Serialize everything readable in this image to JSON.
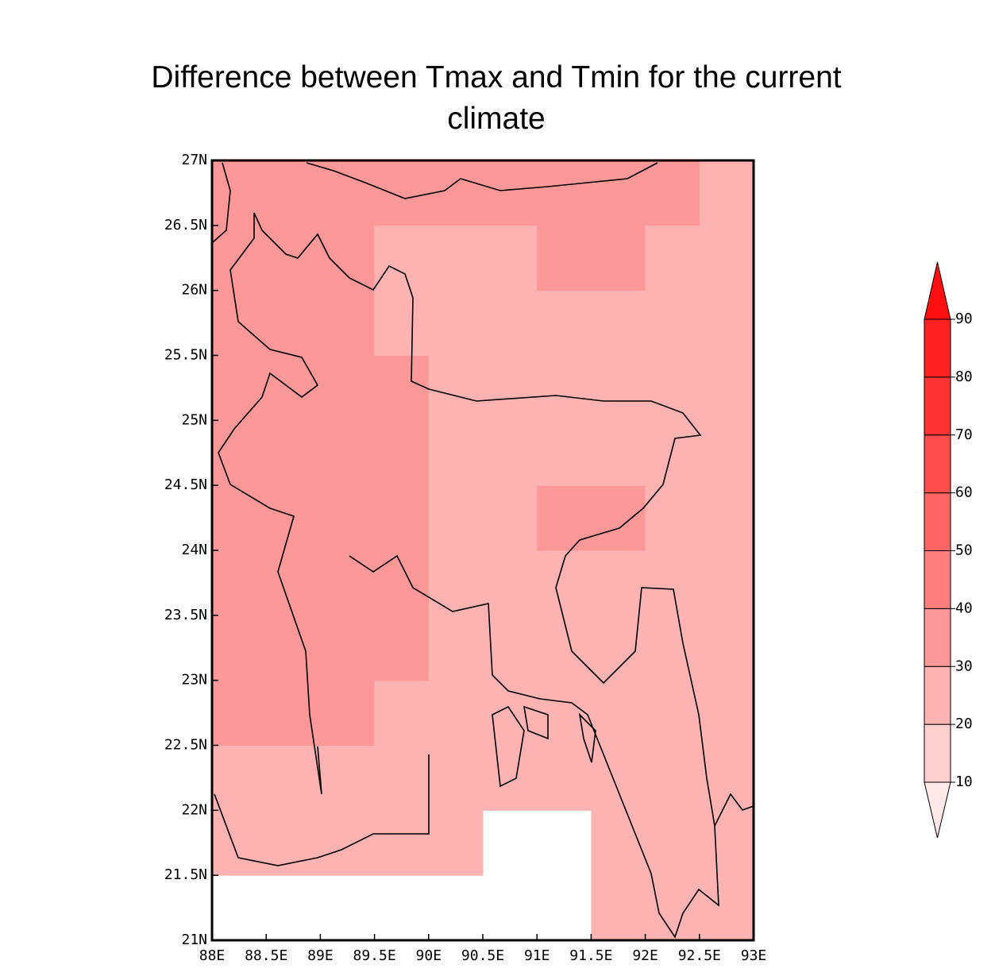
{
  "chart_data": {
    "type": "grid-map",
    "title": "Difference between Tmax and Tmin for the current climate",
    "xticks": [
      {
        "value": 88,
        "label": "88E"
      },
      {
        "value": 88.5,
        "label": "88.5E"
      },
      {
        "value": 89,
        "label": "89E"
      },
      {
        "value": 89.5,
        "label": "89.5E"
      },
      {
        "value": 90,
        "label": "90E"
      },
      {
        "value": 90.5,
        "label": "90.5E"
      },
      {
        "value": 91,
        "label": "91E"
      },
      {
        "value": 91.5,
        "label": "91.5E"
      },
      {
        "value": 92,
        "label": "92E"
      },
      {
        "value": 92.5,
        "label": "92.5E"
      },
      {
        "value": 93,
        "label": "93E"
      }
    ],
    "yticks": [
      {
        "value": 21,
        "label": "21N"
      },
      {
        "value": 21.5,
        "label": "21.5N"
      },
      {
        "value": 22,
        "label": "22N"
      },
      {
        "value": 22.5,
        "label": "22.5N"
      },
      {
        "value": 23,
        "label": "23N"
      },
      {
        "value": 23.5,
        "label": "23.5N"
      },
      {
        "value": 24,
        "label": "24N"
      },
      {
        "value": 24.5,
        "label": "24.5N"
      },
      {
        "value": 25,
        "label": "25N"
      },
      {
        "value": 25.5,
        "label": "25.5N"
      },
      {
        "value": 26,
        "label": "26N"
      },
      {
        "value": 26.5,
        "label": "26.5N"
      },
      {
        "value": 27,
        "label": "27N"
      }
    ],
    "xlim": [
      88,
      93
    ],
    "ylim": [
      21,
      27
    ],
    "cells": [
      [
        null,
        null,
        null,
        null,
        null,
        null,
        null,
        25,
        25,
        25
      ],
      [
        25,
        25,
        25,
        25,
        25,
        null,
        null,
        25,
        25,
        25
      ],
      [
        25,
        25,
        25,
        25,
        25,
        25,
        25,
        25,
        25,
        25
      ],
      [
        35,
        35,
        35,
        25,
        25,
        25,
        25,
        25,
        25,
        25
      ],
      [
        35,
        35,
        35,
        35,
        25,
        25,
        25,
        25,
        25,
        25
      ],
      [
        35,
        35,
        35,
        35,
        25,
        25,
        25,
        25,
        25,
        25
      ],
      [
        35,
        35,
        35,
        35,
        25,
        25,
        35,
        35,
        25,
        25
      ],
      [
        35,
        35,
        35,
        35,
        25,
        25,
        25,
        25,
        25,
        25
      ],
      [
        35,
        35,
        35,
        35,
        25,
        25,
        25,
        25,
        25,
        25
      ],
      [
        35,
        35,
        35,
        25,
        25,
        25,
        25,
        25,
        25,
        25
      ],
      [
        35,
        35,
        35,
        25,
        25,
        25,
        35,
        35,
        25,
        25
      ],
      [
        35,
        35,
        35,
        35,
        35,
        35,
        35,
        35,
        35,
        25
      ]
    ],
    "levels": [
      10,
      20,
      30,
      40,
      50,
      60,
      70,
      80,
      90
    ],
    "colors": [
      "#fee8e8",
      "#ffd0d0",
      "#feb3b3",
      "#fc9898",
      "#fc7e7e",
      "#fd6464",
      "#fd4c4c",
      "#fe3434",
      "#ff2020",
      "#ff1010"
    ]
  }
}
